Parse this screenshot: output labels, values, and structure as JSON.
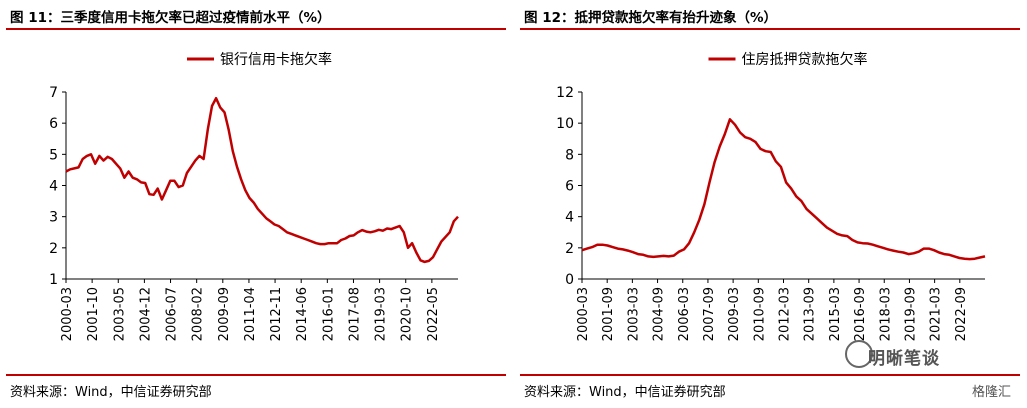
{
  "figures": [
    {
      "title": "图 11：三季度信用卡拖欠率已超过疫情前水平（%）",
      "source": "资料来源：Wind，中信证券研究部"
    },
    {
      "title": "图 12：抵押贷款拖欠率有抬升迹象（%）",
      "source": "资料来源：Wind，中信证券研究部"
    }
  ],
  "watermarks": {
    "main": "明晰笔谈",
    "gzh": "格隆汇"
  },
  "colors": {
    "line": "#c00000",
    "rule": "#c00000"
  },
  "chart_data": [
    {
      "type": "line",
      "legend": "top-center",
      "series": [
        {
          "name": "银行信用卡拖欠率",
          "values": [
            4.45,
            4.52,
            4.55,
            4.58,
            4.85,
            4.95,
            5.0,
            4.7,
            4.95,
            4.8,
            4.92,
            4.85,
            4.7,
            4.55,
            4.25,
            4.45,
            4.25,
            4.2,
            4.1,
            4.08,
            3.72,
            3.7,
            3.9,
            3.55,
            3.85,
            4.15,
            4.15,
            3.95,
            4.0,
            4.4,
            4.6,
            4.8,
            4.95,
            4.85,
            5.8,
            6.55,
            6.8,
            6.5,
            6.35,
            5.8,
            5.1,
            4.6,
            4.2,
            3.85,
            3.6,
            3.45,
            3.25,
            3.1,
            2.95,
            2.85,
            2.75,
            2.7,
            2.6,
            2.5,
            2.45,
            2.4,
            2.35,
            2.3,
            2.25,
            2.2,
            2.15,
            2.12,
            2.12,
            2.15,
            2.15,
            2.15,
            2.25,
            2.3,
            2.38,
            2.4,
            2.5,
            2.57,
            2.52,
            2.5,
            2.53,
            2.58,
            2.55,
            2.62,
            2.6,
            2.65,
            2.7,
            2.5,
            2.0,
            2.15,
            1.85,
            1.6,
            1.55,
            1.58,
            1.7,
            1.95,
            2.2,
            2.35,
            2.5,
            2.85,
            3.0
          ]
        }
      ],
      "x_ticks": [
        "2000-03",
        "2001-10",
        "2003-05",
        "2004-12",
        "2006-07",
        "2008-02",
        "2009-09",
        "2011-04",
        "2012-11",
        "2014-06",
        "2016-01",
        "2017-08",
        "2019-03",
        "2020-10",
        "2022-05"
      ],
      "ylim": [
        1,
        7
      ],
      "y_ticks": [
        1,
        2,
        3,
        4,
        5,
        6,
        7
      ],
      "grid": false
    },
    {
      "type": "line",
      "legend": "top-center",
      "series": [
        {
          "name": "住房抵押贷款拖欠率",
          "values": [
            1.85,
            1.95,
            2.05,
            2.2,
            2.2,
            2.15,
            2.05,
            1.95,
            1.9,
            1.82,
            1.72,
            1.6,
            1.55,
            1.45,
            1.42,
            1.45,
            1.48,
            1.45,
            1.5,
            1.75,
            1.9,
            2.3,
            3.0,
            3.8,
            4.8,
            6.2,
            7.5,
            8.5,
            9.3,
            10.25,
            9.9,
            9.4,
            9.1,
            9.0,
            8.8,
            8.35,
            8.2,
            8.15,
            7.55,
            7.2,
            6.2,
            5.8,
            5.3,
            5.0,
            4.5,
            4.2,
            3.9,
            3.6,
            3.3,
            3.1,
            2.9,
            2.8,
            2.75,
            2.5,
            2.35,
            2.3,
            2.28,
            2.2,
            2.1,
            2.0,
            1.9,
            1.82,
            1.75,
            1.7,
            1.6,
            1.65,
            1.75,
            1.95,
            1.95,
            1.85,
            1.7,
            1.6,
            1.55,
            1.45,
            1.35,
            1.3,
            1.28,
            1.3,
            1.38,
            1.45
          ]
        }
      ],
      "x_ticks": [
        "2000-03",
        "2001-09",
        "2003-03",
        "2004-09",
        "2006-03",
        "2007-09",
        "2009-03",
        "2010-09",
        "2012-03",
        "2013-09",
        "2015-03",
        "2016-09",
        "2018-03",
        "2019-09",
        "2021-03",
        "2022-09"
      ],
      "ylim": [
        0,
        12
      ],
      "y_ticks": [
        0,
        2,
        4,
        6,
        8,
        10,
        12
      ],
      "grid": false
    }
  ]
}
